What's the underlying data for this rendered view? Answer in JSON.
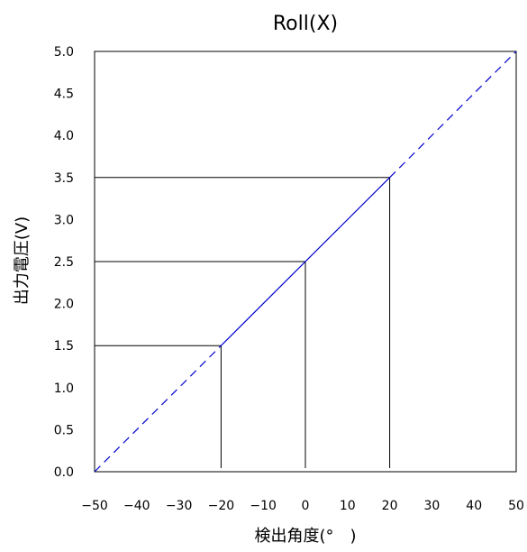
{
  "chart_data": {
    "type": "line",
    "title": "Roll(X)",
    "xlabel": "検出角度(°　)",
    "ylabel": "出力電圧(V)",
    "xlim": [
      -50,
      50
    ],
    "ylim": [
      0.0,
      5.0
    ],
    "x_ticks": [
      "−50",
      "−40",
      "−30",
      "−20",
      "−10",
      "0",
      "10",
      "20",
      "30",
      "40",
      "50"
    ],
    "y_ticks": [
      "0.0",
      "0.5",
      "1.0",
      "1.5",
      "2.0",
      "2.5",
      "3.0",
      "3.5",
      "4.0",
      "4.5",
      "5.0"
    ],
    "series": [
      {
        "x": [
          -50,
          -20
        ],
        "y": [
          0.0,
          1.5
        ],
        "style": "dashed",
        "color": "#0000cc"
      },
      {
        "x": [
          -20,
          20
        ],
        "y": [
          1.5,
          3.5
        ],
        "style": "solid",
        "color": "#0000cc"
      },
      {
        "x": [
          20,
          50
        ],
        "y": [
          3.5,
          5.0
        ],
        "style": "dashed",
        "color": "#0000cc"
      }
    ],
    "reference_points": [
      {
        "x": -20,
        "y": 1.5
      },
      {
        "x": 0,
        "y": 2.5
      },
      {
        "x": 20,
        "y": 3.5
      }
    ],
    "grid": false,
    "legend": "none"
  }
}
